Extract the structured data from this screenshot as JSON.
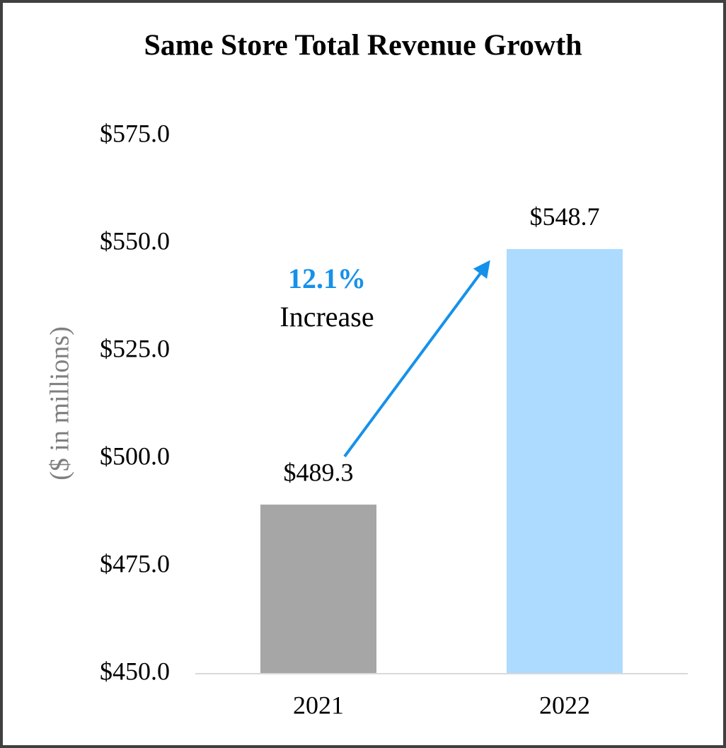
{
  "chart_data": {
    "type": "bar",
    "title": "Same Store Total Revenue Growth",
    "y_label": "($ in millions)",
    "categories": [
      "2021",
      "2022"
    ],
    "values": [
      489.3,
      548.7
    ],
    "value_labels": [
      "$489.3",
      "$548.7"
    ],
    "colors": [
      "#a6a6a6",
      "#addaff"
    ],
    "ylim": [
      450,
      575
    ],
    "yticks": [
      {
        "value": 450,
        "label": "$450.0"
      },
      {
        "value": 475,
        "label": "$475.0"
      },
      {
        "value": 500,
        "label": "$500.0"
      },
      {
        "value": 525,
        "label": "$525.0"
      },
      {
        "value": 550,
        "label": "$550.0"
      },
      {
        "value": 575,
        "label": "$575.0"
      }
    ],
    "grid": false,
    "annotation": {
      "highlight": "12.1%",
      "text": "Increase",
      "color": "#1591ea"
    }
  }
}
